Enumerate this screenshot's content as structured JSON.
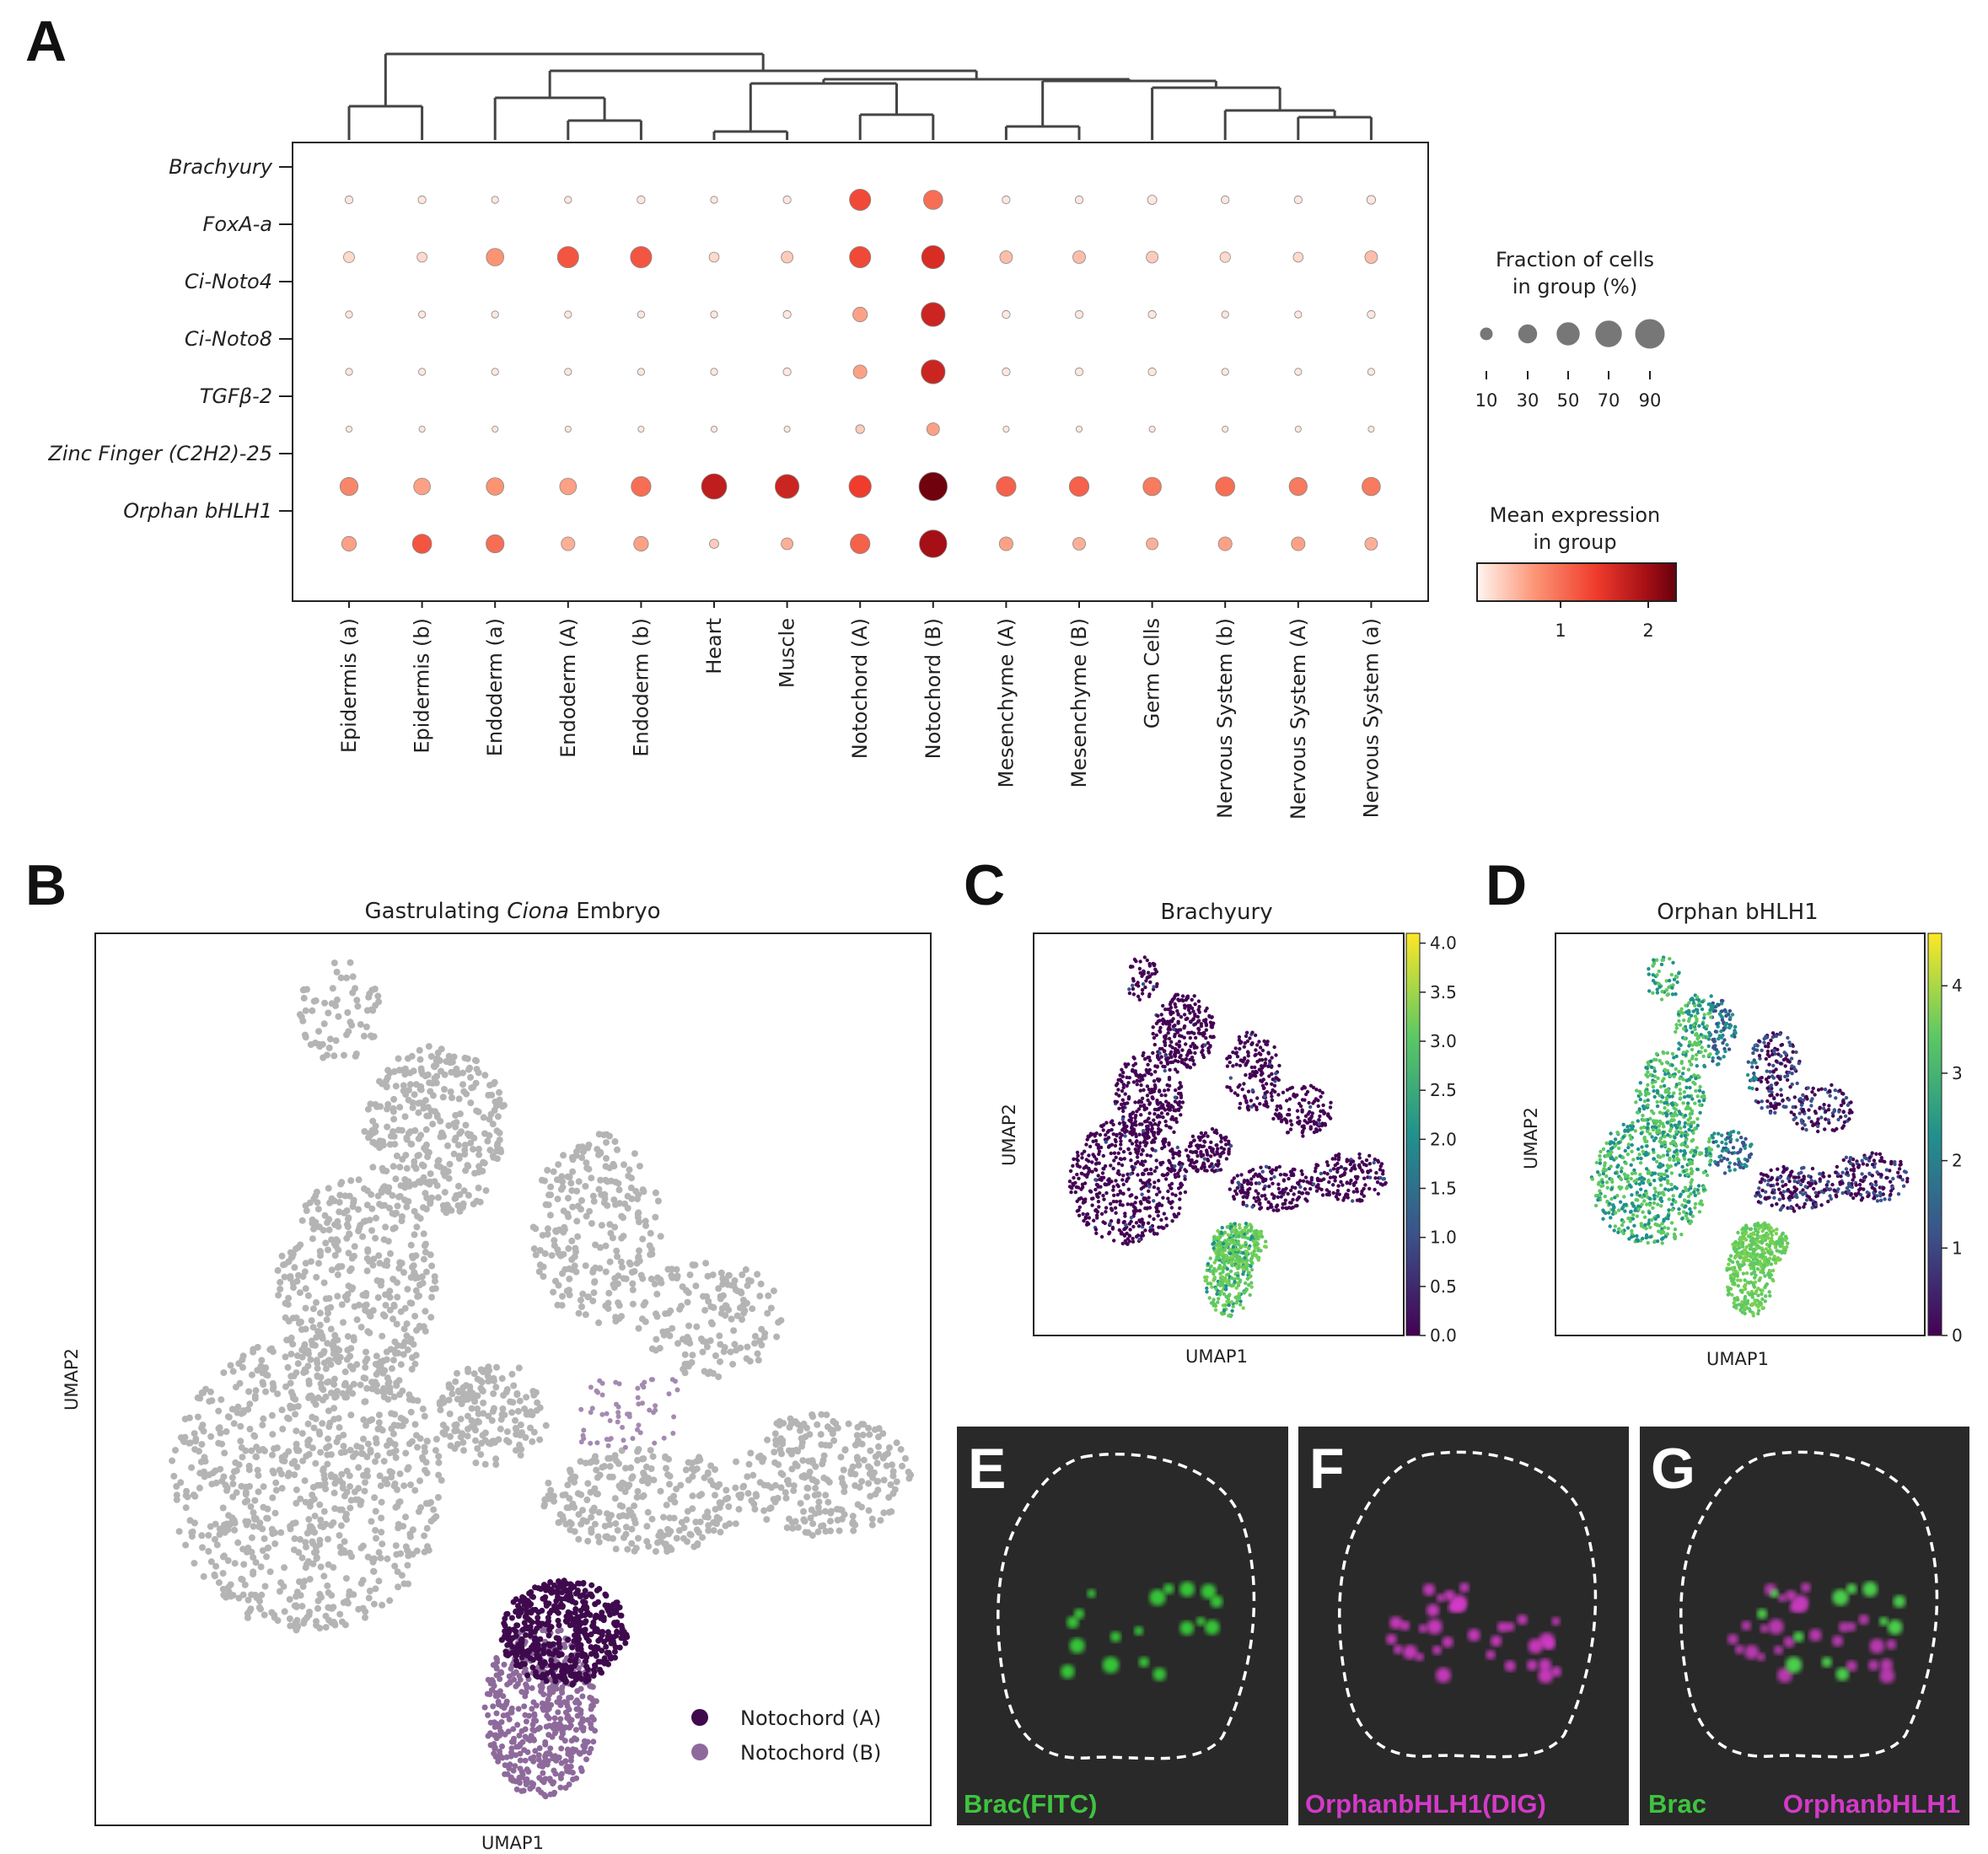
{
  "panels": {
    "A": "A",
    "B": "B",
    "C": "C",
    "D": "D",
    "E": "E",
    "F": "F",
    "G": "G"
  },
  "chart_data": [
    {
      "type": "dotplot",
      "panel": "A",
      "genes": [
        "Brachyury",
        "FoxA-a",
        "Ci-Noto4",
        "Ci-Noto8",
        "TGFβ-2",
        "Zinc Finger (C2H2)-25",
        "Orphan bHLH1"
      ],
      "groups": [
        "Epidermis (a)",
        "Epidermis (b)",
        "Endoderm (a)",
        "Endoderm (A)",
        "Endoderm (b)",
        "Heart",
        "Muscle",
        "Notochord (A)",
        "Notochord (B)",
        "Mesenchyme (A)",
        "Mesenchyme (B)",
        "Germ Cells",
        "Nervous System (b)",
        "Nervous System (A)",
        "Nervous System (a)"
      ],
      "fraction_pct": [
        [
          3,
          3,
          2,
          2,
          3,
          2,
          3,
          45,
          35,
          3,
          3,
          5,
          3,
          3,
          4
        ],
        [
          8,
          6,
          28,
          45,
          45,
          6,
          10,
          45,
          55,
          12,
          12,
          10,
          7,
          6,
          12
        ],
        [
          2,
          2,
          2,
          2,
          2,
          2,
          3,
          18,
          60,
          3,
          3,
          3,
          2,
          2,
          3
        ],
        [
          2,
          2,
          2,
          2,
          2,
          2,
          3,
          15,
          60,
          3,
          3,
          3,
          2,
          2,
          2
        ],
        [
          1,
          1,
          1,
          1,
          1,
          1,
          1,
          4,
          12,
          1,
          1,
          1,
          1,
          1,
          1
        ],
        [
          30,
          25,
          28,
          25,
          38,
          68,
          60,
          50,
          88,
          38,
          38,
          32,
          35,
          30,
          32
        ],
        [
          18,
          35,
          30,
          15,
          18,
          5,
          10,
          38,
          82,
          15,
          12,
          10,
          15,
          15,
          12
        ]
      ],
      "mean_expression": [
        [
          0.1,
          0.1,
          0.1,
          0.1,
          0.1,
          0.1,
          0.1,
          1.3,
          1.0,
          0.1,
          0.1,
          0.1,
          0.1,
          0.1,
          0.1
        ],
        [
          0.2,
          0.2,
          0.7,
          1.2,
          1.2,
          0.2,
          0.3,
          1.3,
          1.6,
          0.4,
          0.4,
          0.3,
          0.2,
          0.2,
          0.4
        ],
        [
          0.1,
          0.1,
          0.1,
          0.1,
          0.1,
          0.1,
          0.1,
          0.6,
          1.7,
          0.1,
          0.1,
          0.1,
          0.1,
          0.1,
          0.1
        ],
        [
          0.1,
          0.1,
          0.1,
          0.1,
          0.1,
          0.1,
          0.1,
          0.6,
          1.7,
          0.1,
          0.1,
          0.1,
          0.1,
          0.1,
          0.1
        ],
        [
          0.1,
          0.1,
          0.1,
          0.1,
          0.1,
          0.1,
          0.1,
          0.3,
          0.6,
          0.1,
          0.1,
          0.1,
          0.1,
          0.1,
          0.1
        ],
        [
          0.8,
          0.6,
          0.7,
          0.6,
          1.0,
          1.8,
          1.7,
          1.4,
          2.3,
          1.1,
          1.1,
          0.9,
          1.0,
          0.9,
          0.9
        ],
        [
          0.6,
          1.2,
          1.0,
          0.5,
          0.6,
          0.3,
          0.5,
          1.1,
          2.0,
          0.6,
          0.5,
          0.5,
          0.6,
          0.6,
          0.5
        ]
      ],
      "size_legend": {
        "title_line1": "Fraction of cells",
        "title_line2": "in group (%)",
        "ticks": [
          "10",
          "30",
          "50",
          "70",
          "90"
        ]
      },
      "color_legend": {
        "title_line1": "Mean expression",
        "title_line2": "in group",
        "ticks": [
          "1",
          "2"
        ],
        "colors": [
          "#fff5f0",
          "#fc9272",
          "#ef3b2c",
          "#a50f15",
          "#67000d"
        ]
      }
    },
    {
      "type": "scatter",
      "panel": "B",
      "title_prefix": "Gastrulating ",
      "title_italic": "Ciona",
      "title_suffix": " Embryo",
      "xlabel": "UMAP1",
      "ylabel": "UMAP2",
      "legend": [
        {
          "label": "Notochord (A)",
          "color": "#3f0a4d"
        },
        {
          "label": "Notochord (B)",
          "color": "#8e6a9c"
        }
      ],
      "background_color": "#b0b0b0"
    },
    {
      "type": "scatter",
      "panel": "C",
      "title": "Brachyury",
      "xlabel": "UMAP1",
      "ylabel": "UMAP2",
      "colorbar_ticks": [
        "0.0",
        "0.5",
        "1.0",
        "1.5",
        "2.0",
        "2.5",
        "3.0",
        "3.5",
        "4.0"
      ],
      "colorbar_range": [
        0,
        4.1
      ]
    },
    {
      "type": "scatter",
      "panel": "D",
      "title": "Orphan bHLH1",
      "xlabel": "UMAP1",
      "ylabel": "UMAP2",
      "colorbar_ticks": [
        "0",
        "1",
        "2",
        "3",
        "4"
      ],
      "colorbar_range": [
        0,
        4.6
      ]
    }
  ],
  "micrographs": {
    "E": {
      "label": "Brac(FITC)",
      "color": "#3ec43e"
    },
    "F": {
      "label": "OrphanbHLH1(DIG)",
      "color": "#d33ac8"
    },
    "G": {
      "label_left": "Brac",
      "label_right": "OrphanbHLH1",
      "color_left": "#3ec43e",
      "color_right": "#d33ac8"
    }
  },
  "viridis": [
    "#440154",
    "#3b528b",
    "#21918c",
    "#5ec962",
    "#fde725"
  ]
}
